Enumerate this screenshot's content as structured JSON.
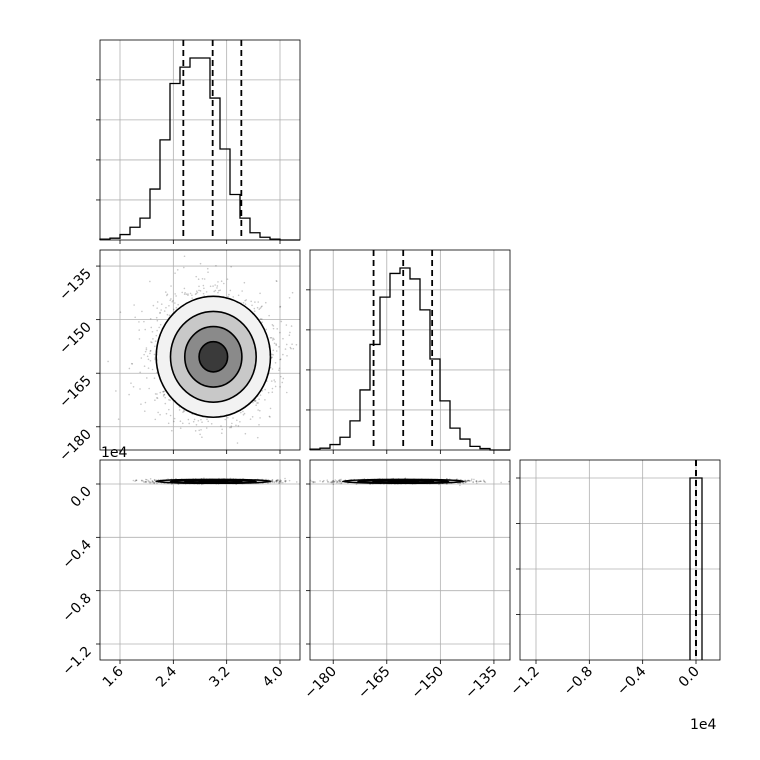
{
  "chart_data": {
    "type": "corner",
    "grid": true,
    "parameters": [
      {
        "ticks": [
          1.6,
          2.4,
          3.2,
          4.0
        ],
        "tick_labels": [
          "1.6",
          "2.4",
          "3.2",
          "4.0"
        ],
        "range": [
          1.3,
          4.3
        ]
      },
      {
        "ticks": [
          -180,
          -165,
          -150,
          -135
        ],
        "tick_labels": [
          "−180",
          "−165",
          "−150",
          "−135"
        ],
        "range": [
          -186.5,
          -130.5
        ]
      },
      {
        "ticks": [
          -1.2,
          -0.8,
          -0.4,
          0.0
        ],
        "tick_labels": [
          "−1.2",
          "−0.8",
          "−0.4",
          "0.0"
        ],
        "range": [
          -1.32,
          0.18
        ],
        "offset_text": "1e4"
      }
    ],
    "axis_offset_texts": {
      "row_2_y": "1e4",
      "col_2_x": "1e4"
    },
    "histograms": [
      {
        "bin_edges": [
          1.3,
          1.45,
          1.6,
          1.75,
          1.9,
          2.05,
          2.2,
          2.35,
          2.5,
          2.65,
          2.8,
          2.95,
          3.1,
          3.25,
          3.4,
          3.55,
          3.7,
          3.85,
          4.0,
          4.15,
          4.3
        ],
        "counts": [
          0.005,
          0.01,
          0.03,
          0.07,
          0.12,
          0.28,
          0.55,
          0.86,
          0.95,
          1.0,
          1.0,
          0.78,
          0.5,
          0.25,
          0.12,
          0.04,
          0.015,
          0.005,
          0.0,
          0.0
        ],
        "quantiles": [
          2.55,
          2.99,
          3.42
        ]
      },
      {
        "bin_edges": [
          -186.5,
          -183.7,
          -180.9,
          -178.1,
          -175.3,
          -172.5,
          -169.7,
          -166.9,
          -164.1,
          -161.3,
          -158.5,
          -155.7,
          -152.9,
          -150.1,
          -147.3,
          -144.5,
          -141.7,
          -138.9,
          -136.1,
          -133.3,
          -130.5
        ],
        "counts": [
          0.005,
          0.01,
          0.03,
          0.07,
          0.16,
          0.33,
          0.58,
          0.84,
          0.97,
          1.0,
          0.94,
          0.77,
          0.5,
          0.27,
          0.12,
          0.06,
          0.02,
          0.008,
          0.0,
          0.0
        ],
        "quantiles": [
          -168.7,
          -160.4,
          -152.3
        ]
      },
      {
        "bin_edges": [
          -0.045,
          0.045
        ],
        "counts": [
          1.0
        ],
        "quantiles": [
          0.0,
          0.0,
          0.0
        ]
      }
    ],
    "scatter_2d": [
      {
        "x_param": 0,
        "y_param": 1,
        "center": [
          3.0,
          -160.4
        ],
        "spread": [
          0.42,
          8.3
        ],
        "sample_count": 2600
      },
      {
        "x_param": 0,
        "y_param": 2,
        "center": [
          3.0,
          0.02
        ],
        "spread": [
          0.42,
          0.007
        ],
        "sample_count": 1800
      },
      {
        "x_param": 1,
        "y_param": 2,
        "center": [
          -160.4,
          0.02
        ],
        "spread": [
          8.3,
          0.007
        ],
        "sample_count": 1800
      }
    ],
    "contour_levels_sigma": [
      0.5,
      1.0,
      1.5,
      2.0
    ]
  }
}
